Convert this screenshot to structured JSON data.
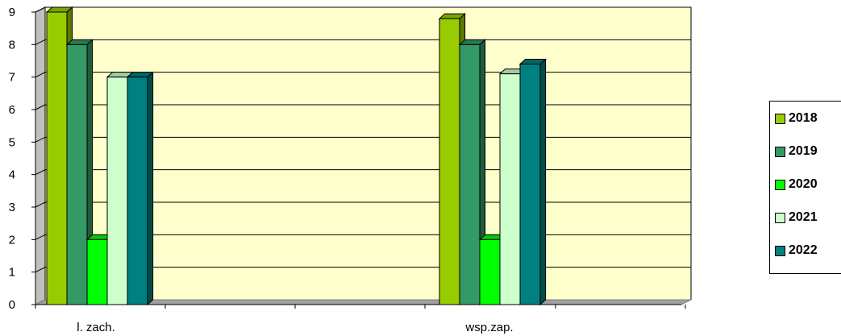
{
  "chart_data": {
    "type": "bar",
    "style": "3d-clustered-column",
    "categories": [
      "l. zach.",
      "wsp.zap."
    ],
    "series": [
      {
        "name": "2018",
        "values": [
          9,
          8.8
        ],
        "color": "#99cc00"
      },
      {
        "name": "2019",
        "values": [
          8,
          8
        ],
        "color": "#339966"
      },
      {
        "name": "2020",
        "values": [
          2,
          2
        ],
        "color": "#00ff00"
      },
      {
        "name": "2021",
        "values": [
          7,
          7.1
        ],
        "color": "#ccffcc"
      },
      {
        "name": "2022",
        "values": [
          7,
          7.4
        ],
        "color": "#008080"
      }
    ],
    "ylim": [
      0,
      9
    ],
    "yticks": [
      "0",
      "1",
      "2",
      "3",
      "4",
      "5",
      "6",
      "7",
      "8",
      "9"
    ],
    "grid": true,
    "plot_background": "#ffffcc",
    "legend_position": "right"
  }
}
